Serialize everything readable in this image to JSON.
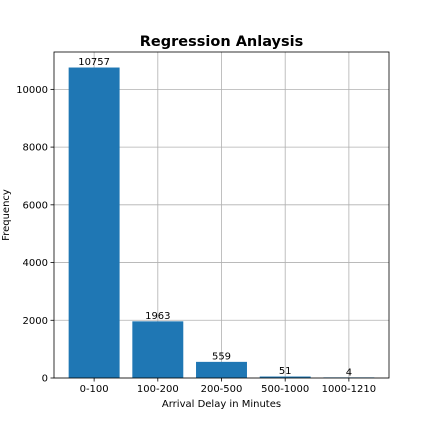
{
  "chart_data": {
    "type": "bar",
    "title": "Regression Anlaysis",
    "xlabel": "Arrival Delay in Minutes",
    "ylabel": "Frequency",
    "categories": [
      "0-100",
      "100-200",
      "200-500",
      "500-1000",
      "1000-1210"
    ],
    "values": [
      10757,
      1963,
      559,
      51,
      4
    ],
    "data_labels": [
      "10757",
      "1963",
      "559",
      "51",
      "4"
    ],
    "yticks": [
      0,
      2000,
      4000,
      6000,
      8000,
      10000
    ],
    "ylim": [
      0,
      11294.85
    ],
    "grid": true,
    "bar_color": "#1f77b4",
    "grid_color": "#b0b0b0"
  }
}
